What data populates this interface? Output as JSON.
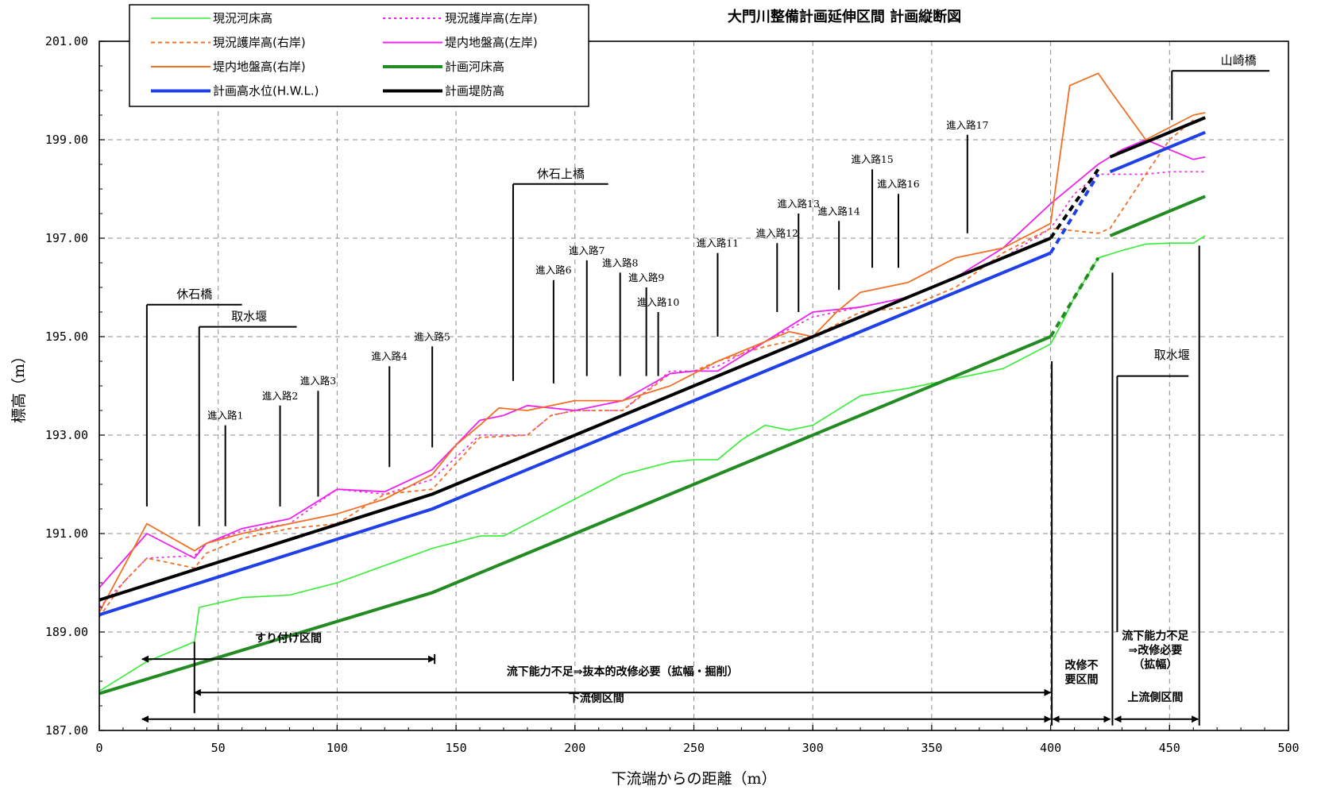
{
  "chart_data": {
    "type": "line",
    "title": "大門川整備計画延伸区間 計画縦断図",
    "xlabel": "下流端からの距離（m）",
    "ylabel": "標高（m）",
    "xlim": [
      0,
      500
    ],
    "ylim": [
      187,
      201
    ],
    "xticks": [
      0,
      50,
      100,
      150,
      200,
      250,
      300,
      350,
      400,
      450,
      500
    ],
    "yticks": [
      "187.00",
      "189.00",
      "191.00",
      "193.00",
      "195.00",
      "197.00",
      "199.00",
      "201.00"
    ],
    "grid": true,
    "legend_position": "top-left",
    "series": [
      {
        "name": "現況河床高",
        "color": "#33ee33",
        "width": 1.6,
        "dash": "",
        "points": [
          [
            0,
            187.8
          ],
          [
            20,
            188.4
          ],
          [
            40,
            188.8
          ],
          [
            42,
            189.5
          ],
          [
            60,
            189.7
          ],
          [
            80,
            189.75
          ],
          [
            100,
            190.0
          ],
          [
            120,
            190.35
          ],
          [
            140,
            190.7
          ],
          [
            160,
            190.95
          ],
          [
            170,
            190.95
          ],
          [
            180,
            191.2
          ],
          [
            200,
            191.7
          ],
          [
            220,
            192.2
          ],
          [
            240,
            192.45
          ],
          [
            250,
            192.5
          ],
          [
            260,
            192.5
          ],
          [
            270,
            192.9
          ],
          [
            280,
            193.2
          ],
          [
            290,
            193.1
          ],
          [
            300,
            193.2
          ],
          [
            310,
            193.5
          ],
          [
            320,
            193.8
          ],
          [
            340,
            193.95
          ],
          [
            360,
            194.15
          ],
          [
            380,
            194.35
          ],
          [
            400,
            194.85
          ],
          [
            405,
            195.3
          ],
          [
            410,
            195.8
          ],
          [
            420,
            196.6
          ],
          [
            430,
            196.75
          ],
          [
            440,
            196.88
          ],
          [
            450,
            196.9
          ],
          [
            460,
            196.9
          ],
          [
            465,
            197.05
          ]
        ]
      },
      {
        "name": "現況護岸高(左岸)",
        "color": "#ee22ee",
        "width": 1.6,
        "dash": "3,4",
        "points": [
          [
            0,
            189.5
          ],
          [
            10,
            190.0
          ],
          [
            20,
            190.5
          ],
          [
            40,
            190.55
          ],
          [
            45,
            190.8
          ],
          [
            60,
            191.05
          ],
          [
            80,
            191.2
          ],
          [
            100,
            191.9
          ],
          [
            120,
            191.8
          ],
          [
            140,
            192.1
          ],
          [
            160,
            193.0
          ],
          [
            170,
            193.0
          ],
          [
            180,
            193.0
          ],
          [
            190,
            193.4
          ],
          [
            200,
            193.5
          ],
          [
            220,
            193.5
          ],
          [
            240,
            194.3
          ],
          [
            250,
            194.3
          ],
          [
            260,
            194.4
          ],
          [
            280,
            194.9
          ],
          [
            300,
            195.4
          ],
          [
            320,
            195.6
          ],
          [
            340,
            195.8
          ],
          [
            360,
            196.2
          ],
          [
            380,
            196.6
          ],
          [
            400,
            197.2
          ],
          [
            410,
            197.9
          ],
          [
            420,
            198.3
          ],
          [
            430,
            198.3
          ],
          [
            440,
            198.3
          ],
          [
            450,
            198.35
          ],
          [
            465,
            198.35
          ]
        ]
      },
      {
        "name": "現況護岸高(右岸)",
        "color": "#f07025",
        "width": 1.8,
        "dash": "5,4",
        "points": [
          [
            0,
            189.3
          ],
          [
            10,
            190.0
          ],
          [
            20,
            190.5
          ],
          [
            40,
            190.3
          ],
          [
            45,
            190.6
          ],
          [
            60,
            190.9
          ],
          [
            80,
            191.1
          ],
          [
            100,
            191.2
          ],
          [
            120,
            191.8
          ],
          [
            140,
            191.9
          ],
          [
            160,
            192.95
          ],
          [
            180,
            193.0
          ],
          [
            190,
            193.4
          ],
          [
            200,
            193.5
          ],
          [
            220,
            193.5
          ],
          [
            240,
            194.25
          ],
          [
            250,
            194.3
          ],
          [
            260,
            194.5
          ],
          [
            280,
            194.8
          ],
          [
            300,
            195.0
          ],
          [
            320,
            195.5
          ],
          [
            340,
            195.6
          ],
          [
            360,
            196.0
          ],
          [
            380,
            196.7
          ],
          [
            400,
            197.2
          ],
          [
            410,
            197.15
          ],
          [
            420,
            197.1
          ],
          [
            425,
            197.2
          ],
          [
            440,
            198.3
          ],
          [
            450,
            199.0
          ],
          [
            460,
            199.4
          ]
        ]
      },
      {
        "name": "堤内地盤高(左岸)",
        "color": "#ee22ee",
        "width": 1.8,
        "dash": "",
        "points": [
          [
            0,
            189.9
          ],
          [
            20,
            191.0
          ],
          [
            40,
            190.5
          ],
          [
            45,
            190.8
          ],
          [
            60,
            191.1
          ],
          [
            80,
            191.3
          ],
          [
            100,
            191.9
          ],
          [
            120,
            191.85
          ],
          [
            140,
            192.3
          ],
          [
            150,
            192.8
          ],
          [
            160,
            193.3
          ],
          [
            170,
            193.4
          ],
          [
            180,
            193.6
          ],
          [
            200,
            193.5
          ],
          [
            220,
            193.7
          ],
          [
            240,
            194.25
          ],
          [
            250,
            194.3
          ],
          [
            260,
            194.3
          ],
          [
            280,
            194.9
          ],
          [
            300,
            195.5
          ],
          [
            320,
            195.6
          ],
          [
            340,
            195.8
          ],
          [
            360,
            196.2
          ],
          [
            380,
            196.8
          ],
          [
            400,
            197.7
          ],
          [
            410,
            198.1
          ],
          [
            420,
            198.5
          ],
          [
            430,
            198.8
          ],
          [
            440,
            199.0
          ],
          [
            450,
            198.8
          ],
          [
            460,
            198.6
          ],
          [
            465,
            198.65
          ]
        ]
      },
      {
        "name": "堤内地盤高(右岸)",
        "color": "#f07025",
        "width": 1.8,
        "dash": "",
        "points": [
          [
            0,
            189.4
          ],
          [
            20,
            191.2
          ],
          [
            40,
            190.65
          ],
          [
            45,
            190.8
          ],
          [
            60,
            191.0
          ],
          [
            80,
            191.2
          ],
          [
            100,
            191.4
          ],
          [
            120,
            191.7
          ],
          [
            140,
            192.2
          ],
          [
            150,
            192.8
          ],
          [
            160,
            193.2
          ],
          [
            168,
            193.55
          ],
          [
            180,
            193.5
          ],
          [
            200,
            193.7
          ],
          [
            220,
            193.7
          ],
          [
            240,
            194.0
          ],
          [
            260,
            194.5
          ],
          [
            280,
            194.9
          ],
          [
            290,
            195.1
          ],
          [
            300,
            195.0
          ],
          [
            310,
            195.5
          ],
          [
            320,
            195.9
          ],
          [
            340,
            196.1
          ],
          [
            360,
            196.6
          ],
          [
            380,
            196.8
          ],
          [
            400,
            197.3
          ],
          [
            408,
            200.1
          ],
          [
            420,
            200.35
          ],
          [
            425,
            200.0
          ],
          [
            440,
            199.0
          ],
          [
            460,
            199.5
          ],
          [
            465,
            199.55
          ]
        ]
      },
      {
        "name": "計画河床高",
        "color": "#228B22",
        "width": 4,
        "dash": "",
        "points": [
          [
            0,
            187.75
          ],
          [
            140,
            189.8
          ],
          [
            400,
            195.0
          ]
        ]
      },
      {
        "name": "計画河床高 (区間外)",
        "color": "#228B22",
        "width": 4,
        "dash": "8,6",
        "points": [
          [
            400,
            195.0
          ],
          [
            420,
            196.6
          ]
        ]
      },
      {
        "name": "計画河床高 (上流)",
        "color": "#228B22",
        "width": 4,
        "dash": "",
        "points": [
          [
            425,
            197.05
          ],
          [
            465,
            197.85
          ]
        ]
      },
      {
        "name": "計画高水位(H.W.L.)",
        "color": "#1f3fe8",
        "width": 4,
        "dash": "",
        "points": [
          [
            0,
            189.35
          ],
          [
            140,
            191.5
          ],
          [
            400,
            196.7
          ]
        ]
      },
      {
        "name": "計画高水位 (区間外)",
        "color": "#1f3fe8",
        "width": 4,
        "dash": "8,6",
        "points": [
          [
            400,
            196.7
          ],
          [
            420,
            198.3
          ]
        ]
      },
      {
        "name": "計画高水位 (上流)",
        "color": "#1f3fe8",
        "width": 4,
        "dash": "",
        "points": [
          [
            425,
            198.35
          ],
          [
            465,
            199.15
          ]
        ]
      },
      {
        "name": "計画堤防高",
        "color": "#000000",
        "width": 4,
        "dash": "",
        "points": [
          [
            0,
            189.65
          ],
          [
            140,
            191.8
          ],
          [
            400,
            197.0
          ]
        ]
      },
      {
        "name": "計画堤防高 (区間外)",
        "color": "#000000",
        "width": 4,
        "dash": "8,6",
        "points": [
          [
            400,
            197.0
          ],
          [
            420,
            198.4
          ]
        ]
      },
      {
        "name": "計画堤防高 (上流)",
        "color": "#000000",
        "width": 4,
        "dash": "",
        "points": [
          [
            425,
            198.65
          ],
          [
            465,
            199.45
          ]
        ]
      }
    ],
    "legend": [
      {
        "label": "現況河床高",
        "color": "#33ee33",
        "width": 1.6,
        "dash": ""
      },
      {
        "label": "現況護岸高(左岸)",
        "color": "#ee22ee",
        "width": 2,
        "dash": "3,4"
      },
      {
        "label": "現況護岸高(右岸)",
        "color": "#f07025",
        "width": 2,
        "dash": "5,4"
      },
      {
        "label": "堤内地盤高(左岸)",
        "color": "#ee22ee",
        "width": 2,
        "dash": ""
      },
      {
        "label": "堤内地盤高(右岸)",
        "color": "#f07025",
        "width": 2,
        "dash": ""
      },
      {
        "label": "計画河床高",
        "color": "#228B22",
        "width": 4,
        "dash": ""
      },
      {
        "label": "計画高水位(H.W.L.)",
        "color": "#1f3fe8",
        "width": 4,
        "dash": ""
      },
      {
        "label": "計画堤防高",
        "color": "#000000",
        "width": 4,
        "dash": ""
      }
    ],
    "annotations": [
      {
        "text": "休石橋",
        "x": 20,
        "y_top": 195.65,
        "y_bottom": 191.55,
        "arm_to": 60,
        "label_x": 40,
        "size": "big"
      },
      {
        "text": "取水堰",
        "x": 42,
        "y_top": 195.2,
        "y_bottom": 191.15,
        "arm_to": 83,
        "label_x": 63,
        "size": "big"
      },
      {
        "text": "休石上橋",
        "x": 174,
        "y_top": 198.1,
        "y_bottom": 194.1,
        "arm_to": 214,
        "label_x": 194,
        "size": "big"
      },
      {
        "text": "山崎橋",
        "x": 451,
        "y_top": 200.4,
        "y_bottom": 199.4,
        "arm_to": 492,
        "label_x": 479,
        "size": "big"
      },
      {
        "text": "取水堰",
        "x": 428,
        "y_top": 194.2,
        "y_bottom": 189.0,
        "arm_to": 458,
        "label_x": 451,
        "label_y": 194.55,
        "size": "big",
        "bracket": "bottom"
      },
      {
        "text": "進入路1",
        "x": 53,
        "y_top": 193.2,
        "y_bottom": 191.15
      },
      {
        "text": "進入路2",
        "x": 76,
        "y_top": 193.6,
        "y_bottom": 191.55
      },
      {
        "text": "進入路3",
        "x": 92,
        "y_top": 193.9,
        "y_bottom": 191.75
      },
      {
        "text": "進入路4",
        "x": 122,
        "y_top": 194.4,
        "y_bottom": 192.35
      },
      {
        "text": "進入路5",
        "x": 140,
        "y_top": 194.8,
        "y_bottom": 192.75
      },
      {
        "text": "進入路6",
        "x": 191,
        "y_top": 196.15,
        "y_bottom": 194.05
      },
      {
        "text": "進入路7",
        "x": 205,
        "y_top": 196.55,
        "y_bottom": 194.2
      },
      {
        "text": "進入路8",
        "x": 219,
        "y_top": 196.3,
        "y_bottom": 194.2
      },
      {
        "text": "進入路9",
        "x": 230,
        "y_top": 196.0,
        "y_bottom": 194.2
      },
      {
        "text": "進入路10",
        "x": 235,
        "y_top": 195.5,
        "y_bottom": 194.2
      },
      {
        "text": "進入路11",
        "x": 260,
        "y_top": 196.7,
        "y_bottom": 195.0
      },
      {
        "text": "進入路12",
        "x": 285,
        "y_top": 196.9,
        "y_bottom": 195.5
      },
      {
        "text": "進入路13",
        "x": 294,
        "y_top": 197.5,
        "y_bottom": 195.5
      },
      {
        "text": "進入路14",
        "x": 311,
        "y_top": 197.35,
        "y_bottom": 195.95
      },
      {
        "text": "進入路15",
        "x": 325,
        "y_top": 198.4,
        "y_bottom": 196.4
      },
      {
        "text": "進入路16",
        "x": 336,
        "y_top": 197.9,
        "y_bottom": 196.4
      },
      {
        "text": "進入路17",
        "x": 365,
        "y_top": 199.1,
        "y_bottom": 197.1
      }
    ],
    "sections": [
      {
        "text": "すり付け区間",
        "x1": 18,
        "x2": 141,
        "y": 188.45,
        "label_y": 188.8
      },
      {
        "text": "流下能力不足⇒抜本的改修必要（拡幅・掘削）",
        "x1": 40,
        "x2": 400,
        "y": 187.77,
        "label_y": 188.12
      },
      {
        "text": "下流側区間",
        "x1": 18,
        "x2": 400,
        "y": 187.23,
        "label_y": 187.58
      }
    ],
    "sections_right": [
      {
        "lines": [
          "改修不",
          "要区間"
        ],
        "x1": 401,
        "x2": 425,
        "y": 187.23,
        "label_x": 413,
        "label_y": 188.25
      },
      {
        "lines": [
          "流下能力不足",
          "⇒改修必要",
          "（拡幅）"
        ],
        "x1": 427,
        "x2": 462,
        "y": 187.23,
        "label_x": 444,
        "label_y": 188.85
      },
      {
        "lines": [
          "上流側区間"
        ],
        "x1": 427,
        "x2": 462,
        "y": 187.23,
        "label_x": 444,
        "label_y": 187.6
      }
    ],
    "dividers": [
      {
        "x": 40,
        "y_top": 188.8,
        "y_bottom": 187.35
      },
      {
        "x": 141,
        "y_top": 188.55,
        "y_bottom": 188.35
      },
      {
        "x": 400.5,
        "y_top": 194.5,
        "y_bottom": 187.1
      },
      {
        "x": 426,
        "y_top": 196.3,
        "y_bottom": 187.1
      },
      {
        "x": 462.5,
        "y_top": 196.85,
        "y_bottom": 187.1
      }
    ]
  }
}
